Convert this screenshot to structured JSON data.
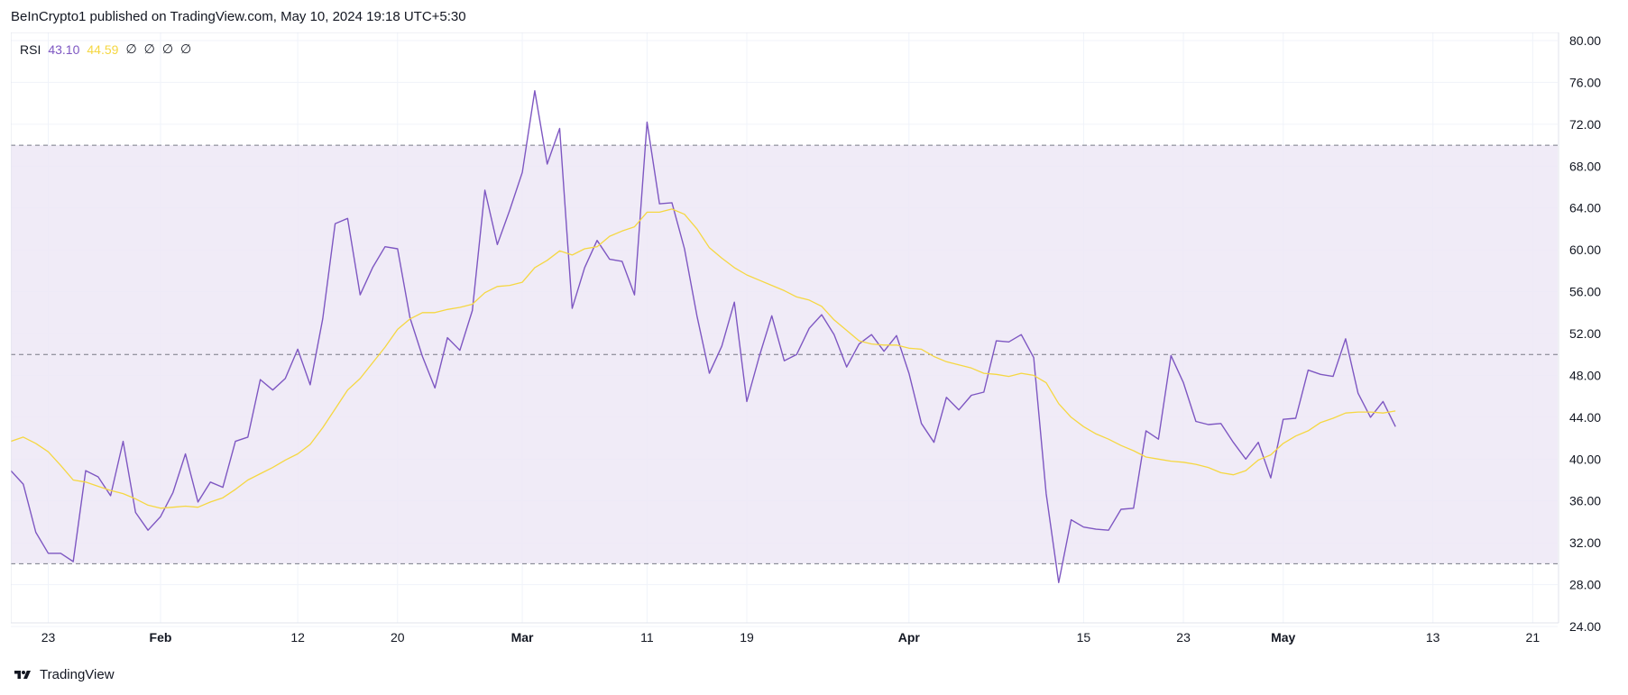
{
  "header": {
    "published": "BeInCrypto1 published on TradingView.com, May 10, 2024 19:18 UTC+5:30"
  },
  "legend": {
    "name": "RSI",
    "rsi_value": "43.10",
    "ma_value": "44.59",
    "na_values": [
      "∅",
      "∅",
      "∅",
      "∅"
    ]
  },
  "footer": {
    "brand": "TradingView"
  },
  "colors": {
    "rsi_line": "#7e57c2",
    "ma_line": "#f5d742",
    "band_fill": "#ede7f6",
    "grid": "#f0f3fa",
    "dashed": "#787b86"
  },
  "chart_data": {
    "type": "line",
    "ylim": [
      24,
      80
    ],
    "y_ticks": [
      "80.00",
      "76.00",
      "72.00",
      "68.00",
      "64.00",
      "60.00",
      "56.00",
      "52.00",
      "48.00",
      "44.00",
      "40.00",
      "36.00",
      "32.00",
      "28.00",
      "24.00"
    ],
    "bands": {
      "upper": 70,
      "middle": 50,
      "lower": 30
    },
    "x_range": [
      "2024-01-20",
      "2024-05-23"
    ],
    "x_ticks": [
      {
        "label": "23",
        "date": "2024-01-23",
        "bold": false
      },
      {
        "label": "Feb",
        "date": "2024-02-01",
        "bold": true
      },
      {
        "label": "12",
        "date": "2024-02-12",
        "bold": false
      },
      {
        "label": "20",
        "date": "2024-02-20",
        "bold": false
      },
      {
        "label": "Mar",
        "date": "2024-03-01",
        "bold": true
      },
      {
        "label": "11",
        "date": "2024-03-11",
        "bold": false
      },
      {
        "label": "19",
        "date": "2024-03-19",
        "bold": false
      },
      {
        "label": "Apr",
        "date": "2024-04-01",
        "bold": true
      },
      {
        "label": "15",
        "date": "2024-04-15",
        "bold": false
      },
      {
        "label": "23",
        "date": "2024-04-23",
        "bold": false
      },
      {
        "label": "May",
        "date": "2024-05-01",
        "bold": true
      },
      {
        "label": "13",
        "date": "2024-05-13",
        "bold": false
      },
      {
        "label": "21",
        "date": "2024-05-21",
        "bold": false
      }
    ],
    "x": [
      "2024-01-20",
      "2024-01-21",
      "2024-01-22",
      "2024-01-23",
      "2024-01-24",
      "2024-01-25",
      "2024-01-26",
      "2024-01-27",
      "2024-01-28",
      "2024-01-29",
      "2024-01-30",
      "2024-01-31",
      "2024-02-01",
      "2024-02-02",
      "2024-02-03",
      "2024-02-04",
      "2024-02-05",
      "2024-02-06",
      "2024-02-07",
      "2024-02-08",
      "2024-02-09",
      "2024-02-10",
      "2024-02-11",
      "2024-02-12",
      "2024-02-13",
      "2024-02-14",
      "2024-02-15",
      "2024-02-16",
      "2024-02-17",
      "2024-02-18",
      "2024-02-19",
      "2024-02-20",
      "2024-02-21",
      "2024-02-22",
      "2024-02-23",
      "2024-02-24",
      "2024-02-25",
      "2024-02-26",
      "2024-02-27",
      "2024-02-28",
      "2024-02-29",
      "2024-03-01",
      "2024-03-02",
      "2024-03-03",
      "2024-03-04",
      "2024-03-05",
      "2024-03-06",
      "2024-03-07",
      "2024-03-08",
      "2024-03-09",
      "2024-03-10",
      "2024-03-11",
      "2024-03-12",
      "2024-03-13",
      "2024-03-14",
      "2024-03-15",
      "2024-03-16",
      "2024-03-17",
      "2024-03-18",
      "2024-03-19",
      "2024-03-20",
      "2024-03-21",
      "2024-03-22",
      "2024-03-23",
      "2024-03-24",
      "2024-03-25",
      "2024-03-26",
      "2024-03-27",
      "2024-03-28",
      "2024-03-29",
      "2024-03-30",
      "2024-03-31",
      "2024-04-01",
      "2024-04-02",
      "2024-04-03",
      "2024-04-04",
      "2024-04-05",
      "2024-04-06",
      "2024-04-07",
      "2024-04-08",
      "2024-04-09",
      "2024-04-10",
      "2024-04-11",
      "2024-04-12",
      "2024-04-13",
      "2024-04-14",
      "2024-04-15",
      "2024-04-16",
      "2024-04-17",
      "2024-04-18",
      "2024-04-19",
      "2024-04-20",
      "2024-04-21",
      "2024-04-22",
      "2024-04-23",
      "2024-04-24",
      "2024-04-25",
      "2024-04-26",
      "2024-04-27",
      "2024-04-28",
      "2024-04-29",
      "2024-04-30",
      "2024-05-01",
      "2024-05-02",
      "2024-05-03",
      "2024-05-04",
      "2024-05-05",
      "2024-05-06",
      "2024-05-07",
      "2024-05-08",
      "2024-05-09",
      "2024-05-10"
    ],
    "series": [
      {
        "values": [
          38.9,
          37.6,
          33.0,
          31.0,
          31.0,
          30.2,
          38.9,
          38.3,
          36.5,
          41.7,
          34.9,
          33.2,
          34.5,
          36.8,
          40.5,
          35.9,
          37.8,
          37.3,
          41.7,
          42.1,
          47.6,
          46.6,
          47.7,
          50.5,
          47.1,
          53.4,
          62.5,
          63.0,
          55.7,
          58.3,
          60.3,
          60.1,
          53.5,
          49.8,
          46.8,
          51.6,
          50.4,
          54.2,
          65.7,
          60.5,
          63.8,
          67.4,
          75.2,
          68.2,
          71.6,
          54.4,
          58.3,
          60.9,
          59.1,
          58.9,
          55.7,
          72.2,
          64.4,
          64.5,
          60.1,
          53.7,
          48.2,
          50.8,
          55.0,
          45.5,
          49.8,
          53.7,
          49.4,
          50.0,
          52.5,
          53.8,
          51.9,
          48.8,
          51.0,
          51.9,
          50.3,
          51.8,
          48.2,
          43.4,
          41.6,
          45.9,
          44.7,
          46.1,
          46.4,
          51.3,
          51.2,
          51.9,
          49.7,
          36.7,
          28.2,
          34.2,
          33.5,
          33.3,
          33.2,
          35.2,
          35.3,
          42.7,
          41.9,
          49.9,
          47.3,
          43.6,
          43.3,
          43.4,
          41.6,
          40.0,
          41.6,
          38.2,
          43.8,
          43.9,
          48.5,
          48.1,
          47.9,
          51.5,
          46.3,
          44.0,
          45.5,
          43.1
        ]
      },
      {
        "values": [
          41.7,
          42.1,
          41.5,
          40.7,
          39.4,
          38.0,
          37.8,
          37.4,
          37.0,
          36.7,
          36.2,
          35.6,
          35.3,
          35.4,
          35.5,
          35.4,
          35.9,
          36.3,
          37.1,
          38.0,
          38.6,
          39.2,
          39.9,
          40.5,
          41.4,
          43.0,
          44.8,
          46.6,
          47.7,
          49.2,
          50.7,
          52.4,
          53.4,
          54.0,
          54.0,
          54.3,
          54.5,
          54.8,
          55.9,
          56.5,
          56.6,
          56.9,
          58.3,
          59.0,
          59.9,
          59.5,
          60.1,
          60.3,
          61.3,
          61.8,
          62.2,
          63.6,
          63.6,
          63.9,
          63.4,
          62.0,
          60.2,
          59.2,
          58.3,
          57.6,
          57.1,
          56.6,
          56.1,
          55.5,
          55.2,
          54.6,
          53.3,
          52.3,
          51.3,
          51.0,
          50.9,
          50.9,
          50.6,
          50.5,
          49.8,
          49.3,
          49.0,
          48.7,
          48.2,
          48.1,
          47.9,
          48.2,
          48.0,
          47.3,
          45.3,
          44.0,
          43.1,
          42.4,
          41.9,
          41.3,
          40.8,
          40.2,
          40.0,
          39.8,
          39.7,
          39.5,
          39.2,
          38.7,
          38.5,
          38.9,
          39.9,
          40.4,
          41.5,
          42.2,
          42.7,
          43.5,
          43.9,
          44.4,
          44.5,
          44.5,
          44.4,
          44.6
        ]
      }
    ]
  }
}
